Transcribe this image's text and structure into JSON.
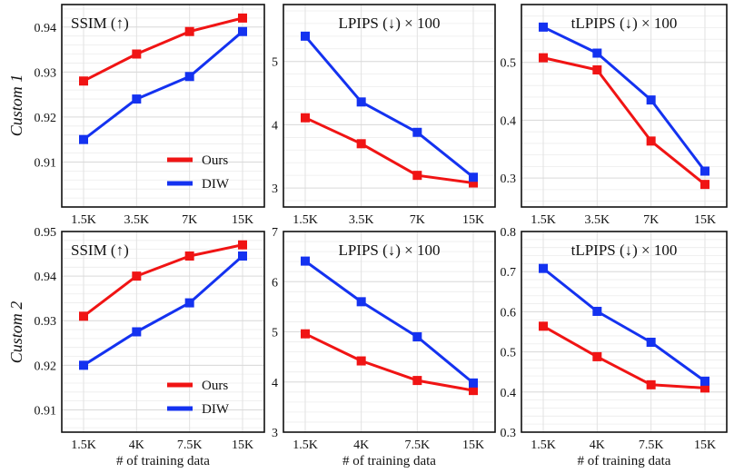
{
  "colors": {
    "ours": "#f01414",
    "diw": "#1432f0",
    "frame": "#111111",
    "grid": "#d9d9d9"
  },
  "row_labels": [
    "Custom 1",
    "Custom 2"
  ],
  "xlabel": "# of training data",
  "chart_data": [
    {
      "type": "line",
      "row": 0,
      "col": 0,
      "title": "SSIM (↑)",
      "categories": [
        "1.5K",
        "3.5K",
        "7K",
        "15K"
      ],
      "ylim": [
        0.9,
        0.945
      ],
      "yticks": [
        0.91,
        0.92,
        0.93,
        0.94
      ],
      "ytick_labels": [
        "0.91",
        "0.92",
        "0.93",
        "0.94"
      ],
      "legend": "bottom-right",
      "series": [
        {
          "name": "Ours",
          "color": "ours",
          "values": [
            0.928,
            0.934,
            0.939,
            0.942
          ]
        },
        {
          "name": "DIW",
          "color": "diw",
          "values": [
            0.915,
            0.924,
            0.929,
            0.939
          ]
        }
      ]
    },
    {
      "type": "line",
      "row": 0,
      "col": 1,
      "title": "LPIPS (↓) × 100",
      "categories": [
        "1.5K",
        "3.5K",
        "7K",
        "15K"
      ],
      "ylim": [
        2.7,
        5.9
      ],
      "yticks": [
        3,
        4,
        5
      ],
      "ytick_labels": [
        "3",
        "4",
        "5"
      ],
      "legend": "none",
      "series": [
        {
          "name": "Ours",
          "color": "ours",
          "values": [
            4.11,
            3.7,
            3.2,
            3.08
          ]
        },
        {
          "name": "DIW",
          "color": "diw",
          "values": [
            5.4,
            4.36,
            3.88,
            3.17
          ]
        }
      ]
    },
    {
      "type": "line",
      "row": 0,
      "col": 2,
      "title": "tLPIPS (↓) × 100",
      "categories": [
        "1.5K",
        "3.5K",
        "7K",
        "15K"
      ],
      "ylim": [
        0.25,
        0.6
      ],
      "yticks": [
        0.3,
        0.4,
        0.5
      ],
      "ytick_labels": [
        "0.3",
        "0.4",
        "0.5"
      ],
      "legend": "none",
      "series": [
        {
          "name": "Ours",
          "color": "ours",
          "values": [
            0.508,
            0.487,
            0.364,
            0.289
          ]
        },
        {
          "name": "DIW",
          "color": "diw",
          "values": [
            0.561,
            0.516,
            0.435,
            0.312
          ]
        }
      ]
    },
    {
      "type": "line",
      "row": 1,
      "col": 0,
      "title": "SSIM (↑)",
      "categories": [
        "1.5K",
        "4K",
        "7.5K",
        "15K"
      ],
      "ylim": [
        0.905,
        0.95
      ],
      "yticks": [
        0.91,
        0.92,
        0.93,
        0.94,
        0.95
      ],
      "ytick_labels": [
        "0.91",
        "0.92",
        "0.93",
        "0.94",
        "0.95"
      ],
      "legend": "bottom-right",
      "series": [
        {
          "name": "Ours",
          "color": "ours",
          "values": [
            0.931,
            0.94,
            0.9445,
            0.947
          ]
        },
        {
          "name": "DIW",
          "color": "diw",
          "values": [
            0.92,
            0.9275,
            0.934,
            0.9445
          ]
        }
      ]
    },
    {
      "type": "line",
      "row": 1,
      "col": 1,
      "title": "LPIPS (↓) × 100",
      "categories": [
        "1.5K",
        "4K",
        "7.5K",
        "15K"
      ],
      "ylim": [
        3,
        7
      ],
      "yticks": [
        3,
        4,
        5,
        6,
        7
      ],
      "ytick_labels": [
        "3",
        "4",
        "5",
        "6",
        "7"
      ],
      "legend": "none",
      "series": [
        {
          "name": "Ours",
          "color": "ours",
          "values": [
            4.96,
            4.42,
            4.03,
            3.83
          ]
        },
        {
          "name": "DIW",
          "color": "diw",
          "values": [
            6.41,
            5.6,
            4.9,
            3.98
          ]
        }
      ]
    },
    {
      "type": "line",
      "row": 1,
      "col": 2,
      "title": "tLPIPS (↓) × 100",
      "categories": [
        "1.5K",
        "4K",
        "7.5K",
        "15K"
      ],
      "ylim": [
        0.3,
        0.8
      ],
      "yticks": [
        0.3,
        0.4,
        0.5,
        0.6,
        0.7,
        0.8
      ],
      "ytick_labels": [
        "0.3",
        "0.4",
        "0.5",
        "0.6",
        "0.7",
        "0.8"
      ],
      "legend": "none",
      "series": [
        {
          "name": "Ours",
          "color": "ours",
          "values": [
            0.564,
            0.488,
            0.418,
            0.41
          ]
        },
        {
          "name": "DIW",
          "color": "diw",
          "values": [
            0.708,
            0.601,
            0.524,
            0.427
          ]
        }
      ]
    }
  ]
}
